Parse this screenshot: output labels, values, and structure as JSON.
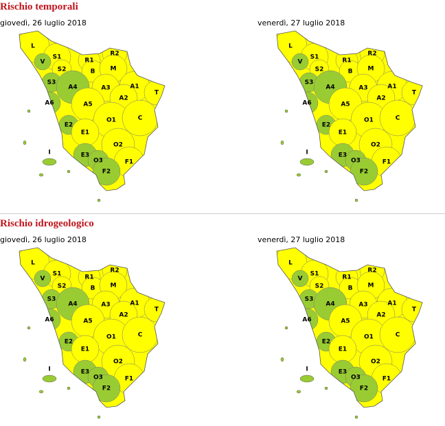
{
  "sections": [
    {
      "title": "Rischio temporali",
      "maps": [
        {
          "date": "giovedì, 26 luglio 2018",
          "zones": [
            {
              "label": "L",
              "color": "#ffff00"
            },
            {
              "label": "S1",
              "color": "#ffff00"
            },
            {
              "label": "V",
              "color": "#99cc33"
            },
            {
              "label": "S2",
              "color": "#ffff00"
            },
            {
              "label": "R1",
              "color": "#ffff00"
            },
            {
              "label": "R2",
              "color": "#ffff00"
            },
            {
              "label": "B",
              "color": "#ffff00"
            },
            {
              "label": "M",
              "color": "#ffff00"
            },
            {
              "label": "S3",
              "color": "#99cc33"
            },
            {
              "label": "A4",
              "color": "#99cc33"
            },
            {
              "label": "A3",
              "color": "#ffff00"
            },
            {
              "label": "A1",
              "color": "#ffff00"
            },
            {
              "label": "T",
              "color": "#ffff00"
            },
            {
              "label": "A6",
              "color": "#99cc33"
            },
            {
              "label": "A2",
              "color": "#ffff00"
            },
            {
              "label": "A5",
              "color": "#ffff00"
            },
            {
              "label": "O1",
              "color": "#ffff00"
            },
            {
              "label": "C",
              "color": "#ffff00"
            },
            {
              "label": "E2",
              "color": "#99cc33"
            },
            {
              "label": "E1",
              "color": "#ffff00"
            },
            {
              "label": "O2",
              "color": "#ffff00"
            },
            {
              "label": "I",
              "color": "#99cc33"
            },
            {
              "label": "E3",
              "color": "#99cc33"
            },
            {
              "label": "O3",
              "color": "#99cc33"
            },
            {
              "label": "F1",
              "color": "#ffff00"
            },
            {
              "label": "F2",
              "color": "#99cc33"
            }
          ]
        },
        {
          "date": "venerdì, 27 luglio 2018",
          "zones": [
            {
              "label": "L",
              "color": "#ffff00"
            },
            {
              "label": "S1",
              "color": "#ffff00"
            },
            {
              "label": "V",
              "color": "#99cc33"
            },
            {
              "label": "S2",
              "color": "#ffff00"
            },
            {
              "label": "R1",
              "color": "#ffff00"
            },
            {
              "label": "R2",
              "color": "#ffff00"
            },
            {
              "label": "B",
              "color": "#ffff00"
            },
            {
              "label": "M",
              "color": "#ffff00"
            },
            {
              "label": "S3",
              "color": "#99cc33"
            },
            {
              "label": "A4",
              "color": "#99cc33"
            },
            {
              "label": "A3",
              "color": "#ffff00"
            },
            {
              "label": "A1",
              "color": "#ffff00"
            },
            {
              "label": "T",
              "color": "#ffff00"
            },
            {
              "label": "A6",
              "color": "#99cc33"
            },
            {
              "label": "A2",
              "color": "#ffff00"
            },
            {
              "label": "A5",
              "color": "#ffff00"
            },
            {
              "label": "O1",
              "color": "#ffff00"
            },
            {
              "label": "C",
              "color": "#ffff00"
            },
            {
              "label": "E2",
              "color": "#99cc33"
            },
            {
              "label": "E1",
              "color": "#ffff00"
            },
            {
              "label": "O2",
              "color": "#ffff00"
            },
            {
              "label": "I",
              "color": "#99cc33"
            },
            {
              "label": "E3",
              "color": "#99cc33"
            },
            {
              "label": "O3",
              "color": "#99cc33"
            },
            {
              "label": "F1",
              "color": "#ffff00"
            },
            {
              "label": "F2",
              "color": "#99cc33"
            }
          ]
        }
      ]
    },
    {
      "title": "Rischio idrogeologico",
      "maps": [
        {
          "date": "giovedì, 26 luglio 2018",
          "zones": [
            {
              "label": "L",
              "color": "#ffff00"
            },
            {
              "label": "S1",
              "color": "#ffff00"
            },
            {
              "label": "V",
              "color": "#99cc33"
            },
            {
              "label": "S2",
              "color": "#ffff00"
            },
            {
              "label": "R1",
              "color": "#ffff00"
            },
            {
              "label": "R2",
              "color": "#ffff00"
            },
            {
              "label": "B",
              "color": "#ffff00"
            },
            {
              "label": "M",
              "color": "#ffff00"
            },
            {
              "label": "S3",
              "color": "#99cc33"
            },
            {
              "label": "A4",
              "color": "#99cc33"
            },
            {
              "label": "A3",
              "color": "#ffff00"
            },
            {
              "label": "A1",
              "color": "#ffff00"
            },
            {
              "label": "T",
              "color": "#ffff00"
            },
            {
              "label": "A6",
              "color": "#99cc33"
            },
            {
              "label": "A2",
              "color": "#ffff00"
            },
            {
              "label": "A5",
              "color": "#ffff00"
            },
            {
              "label": "O1",
              "color": "#ffff00"
            },
            {
              "label": "C",
              "color": "#ffff00"
            },
            {
              "label": "E2",
              "color": "#99cc33"
            },
            {
              "label": "E1",
              "color": "#ffff00"
            },
            {
              "label": "O2",
              "color": "#ffff00"
            },
            {
              "label": "I",
              "color": "#99cc33"
            },
            {
              "label": "E3",
              "color": "#99cc33"
            },
            {
              "label": "O3",
              "color": "#99cc33"
            },
            {
              "label": "F1",
              "color": "#ffff00"
            },
            {
              "label": "F2",
              "color": "#99cc33"
            }
          ]
        },
        {
          "date": "venerdì, 27 luglio 2018",
          "zones": [
            {
              "label": "L",
              "color": "#ffff00"
            },
            {
              "label": "S1",
              "color": "#ffff00"
            },
            {
              "label": "V",
              "color": "#99cc33"
            },
            {
              "label": "S2",
              "color": "#ffff00"
            },
            {
              "label": "R1",
              "color": "#ffff00"
            },
            {
              "label": "R2",
              "color": "#ffff00"
            },
            {
              "label": "B",
              "color": "#ffff00"
            },
            {
              "label": "M",
              "color": "#ffff00"
            },
            {
              "label": "S3",
              "color": "#99cc33"
            },
            {
              "label": "A4",
              "color": "#99cc33"
            },
            {
              "label": "A3",
              "color": "#ffff00"
            },
            {
              "label": "A1",
              "color": "#ffff00"
            },
            {
              "label": "T",
              "color": "#ffff00"
            },
            {
              "label": "A6",
              "color": "#99cc33"
            },
            {
              "label": "A2",
              "color": "#ffff00"
            },
            {
              "label": "A5",
              "color": "#ffff00"
            },
            {
              "label": "O1",
              "color": "#ffff00"
            },
            {
              "label": "C",
              "color": "#ffff00"
            },
            {
              "label": "E2",
              "color": "#99cc33"
            },
            {
              "label": "E1",
              "color": "#ffff00"
            },
            {
              "label": "O2",
              "color": "#ffff00"
            },
            {
              "label": "I",
              "color": "#99cc33"
            },
            {
              "label": "E3",
              "color": "#99cc33"
            },
            {
              "label": "O3",
              "color": "#99cc33"
            },
            {
              "label": "F1",
              "color": "#ffff00"
            },
            {
              "label": "F2",
              "color": "#99cc33"
            }
          ]
        }
      ]
    }
  ]
}
